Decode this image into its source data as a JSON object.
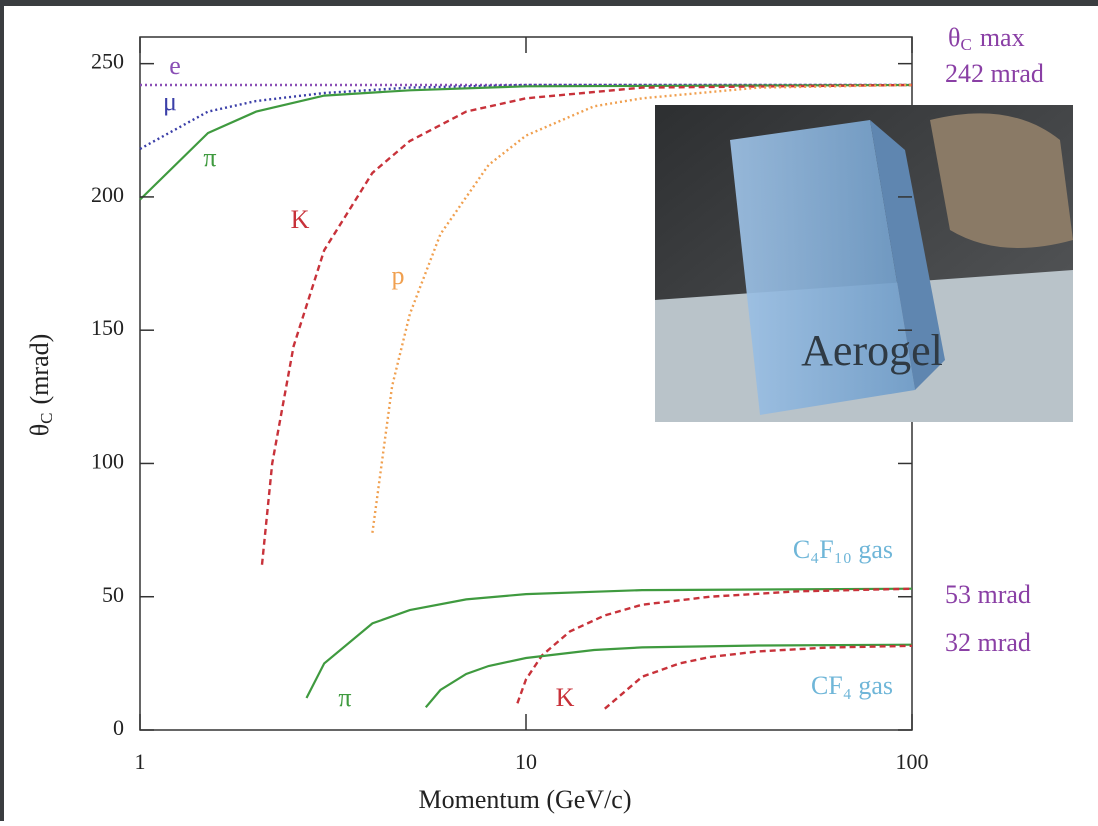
{
  "chart_data": {
    "type": "line",
    "x_label": "Momentum (GeV/c)",
    "y_label": {
      "symbol": "θ",
      "sub": "C",
      "unit": "(mrad)"
    },
    "xscale": "log",
    "xlim": [
      1,
      100
    ],
    "xticks": [
      1,
      10,
      100
    ],
    "ylim": [
      0,
      260
    ],
    "yticks": [
      0,
      50,
      100,
      150,
      200,
      250
    ],
    "grid": false,
    "series": [
      {
        "name": "e",
        "color": "#8a4fb5",
        "dash": "dotted",
        "x": [
          1,
          100
        ],
        "values": [
          242,
          242
        ]
      },
      {
        "name": "μ",
        "color": "#3b3fa8",
        "dash": "dotted",
        "x": [
          1,
          1.5,
          2,
          3,
          5,
          10,
          100
        ],
        "values": [
          218,
          232,
          236,
          239,
          241,
          242,
          242
        ]
      },
      {
        "name": "π",
        "color": "#3f9a3f",
        "dash": "solid",
        "x": [
          1,
          1.5,
          2,
          3,
          5,
          10,
          100
        ],
        "values": [
          199,
          224,
          232,
          238,
          240,
          241.5,
          242
        ]
      },
      {
        "name": "K",
        "color": "#c8323a",
        "dash": "dashed",
        "x": [
          2.07,
          2.2,
          2.5,
          3,
          4,
          5,
          7,
          10,
          20,
          100
        ],
        "values": [
          62,
          100,
          144,
          180,
          209,
          221,
          232,
          237,
          241,
          242
        ]
      },
      {
        "name": "p",
        "color": "#f0a050",
        "dash": "dotted",
        "x": [
          4,
          4.5,
          5,
          6,
          8,
          10,
          15,
          20,
          40,
          100
        ],
        "values": [
          74,
          129,
          156,
          186,
          212,
          223,
          234,
          237,
          241,
          242
        ]
      },
      {
        "name": "π",
        "color": "#3f9a3f",
        "dash": "solid",
        "x": [
          2.7,
          3,
          4,
          5,
          7,
          10,
          20,
          100
        ],
        "values": [
          12,
          25,
          40,
          45,
          49,
          51,
          52.5,
          53
        ]
      },
      {
        "name": "K",
        "color": "#c8323a",
        "dash": "dashed",
        "x": [
          9.5,
          10,
          11,
          13,
          16,
          20,
          30,
          50,
          100
        ],
        "values": [
          10,
          19,
          28,
          37,
          43,
          47,
          50,
          52,
          53
        ]
      },
      {
        "color": "#3f9a3f",
        "dash": "solid",
        "x": [
          5.5,
          6,
          7,
          8,
          10,
          15,
          20,
          40,
          100
        ],
        "values": [
          8.5,
          15,
          21,
          24,
          27,
          30,
          31,
          31.7,
          32
        ]
      },
      {
        "color": "#c8323a",
        "dash": "dashed",
        "x": [
          16,
          20,
          25,
          30,
          40,
          60,
          100
        ],
        "values": [
          8,
          20,
          25,
          27.4,
          29.5,
          30.9,
          31.6
        ]
      }
    ],
    "annotations": {
      "theta_max": {
        "symbol": "θ",
        "sub": "C",
        "rest": "max"
      },
      "aerogel_max": "242 mrad",
      "c4f10_max": "53 mrad",
      "cf4_max": "32 mrad",
      "c4f10": "C₄F₁₀ gas",
      "cf4": "CF₄ gas",
      "inset": "Aerogel"
    }
  }
}
